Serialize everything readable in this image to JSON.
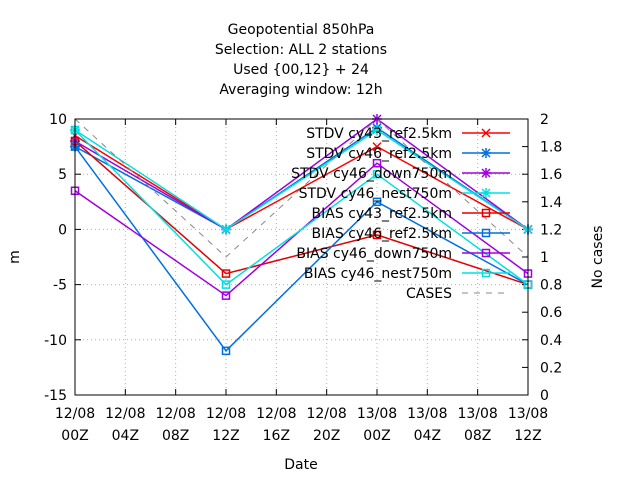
{
  "chart_data": {
    "type": "line",
    "title_lines": [
      "Geopotential 850hPa",
      "Selection: ALL      2 stations",
      "Used {00,12} + 24",
      "Averaging window: 12h"
    ],
    "xlabel": "Date",
    "ylabel": "m",
    "y2label": "No cases",
    "x_ticks": [
      [
        "12/08",
        "00Z"
      ],
      [
        "12/08",
        "04Z"
      ],
      [
        "12/08",
        "08Z"
      ],
      [
        "12/08",
        "12Z"
      ],
      [
        "12/08",
        "16Z"
      ],
      [
        "12/08",
        "20Z"
      ],
      [
        "13/08",
        "00Z"
      ],
      [
        "13/08",
        "04Z"
      ],
      [
        "13/08",
        "08Z"
      ],
      [
        "13/08",
        "12Z"
      ]
    ],
    "xlim": [
      0,
      36
    ],
    "ylim": [
      -15,
      10
    ],
    "y_ticks": [
      "10",
      "5",
      "0",
      "-5",
      "-10",
      "-15"
    ],
    "y2lim": [
      0,
      2
    ],
    "y2_ticks": [
      "2",
      "1.8",
      "1.6",
      "1.4",
      "1.2",
      "1",
      "0.8",
      "0.6",
      "0.4",
      "0.2",
      "0"
    ],
    "legend_position": "top-right",
    "series": [
      {
        "name": "STDV cy43_ref2.5km",
        "color": "#ff0000",
        "marker": "x",
        "style": "solid",
        "axis": "y",
        "x": [
          0,
          12,
          24,
          36
        ],
        "y": [
          8.5,
          0,
          7.5,
          0
        ]
      },
      {
        "name": "STDV cy46_ref2.5km",
        "color": "#0070e0",
        "marker": "star",
        "style": "solid",
        "axis": "y",
        "x": [
          0,
          12,
          24,
          36
        ],
        "y": [
          7.5,
          0,
          9.2,
          0
        ]
      },
      {
        "name": "STDV cy46_down750m",
        "color": "#a000e0",
        "marker": "star",
        "style": "solid",
        "axis": "y",
        "x": [
          0,
          12,
          24,
          36
        ],
        "y": [
          8.0,
          0,
          10.0,
          0
        ]
      },
      {
        "name": "STDV cy46_nest750m",
        "color": "#00e0e0",
        "marker": "star",
        "style": "solid",
        "axis": "y",
        "x": [
          0,
          12,
          24,
          36
        ],
        "y": [
          9.0,
          0,
          9.0,
          0
        ]
      },
      {
        "name": "BIAS cy43_ref2.5km",
        "color": "#e00000",
        "marker": "square",
        "style": "solid",
        "axis": "y",
        "x": [
          0,
          12,
          24,
          36
        ],
        "y": [
          8.0,
          -4.0,
          -0.5,
          -5.0
        ]
      },
      {
        "name": "BIAS cy46_ref2.5km",
        "color": "#0070e0",
        "marker": "square",
        "style": "solid",
        "axis": "y",
        "x": [
          0,
          12,
          24,
          36
        ],
        "y": [
          7.5,
          -11.0,
          2.5,
          -5.0
        ]
      },
      {
        "name": "BIAS cy46_down750m",
        "color": "#a000e0",
        "marker": "square",
        "style": "solid",
        "axis": "y",
        "x": [
          0,
          12,
          24,
          36
        ],
        "y": [
          3.5,
          -6.0,
          6.0,
          -4.0
        ]
      },
      {
        "name": "BIAS cy46_nest750m",
        "color": "#00e0e0",
        "marker": "square",
        "style": "solid",
        "axis": "y",
        "x": [
          0,
          12,
          24,
          36
        ],
        "y": [
          9.0,
          -5.0,
          5.0,
          -5.0
        ]
      },
      {
        "name": "CASES",
        "color": "#888888",
        "marker": "none",
        "style": "dashed",
        "axis": "y2",
        "x": [
          0,
          12,
          24,
          36
        ],
        "y": [
          2,
          1,
          2,
          1
        ]
      }
    ]
  }
}
